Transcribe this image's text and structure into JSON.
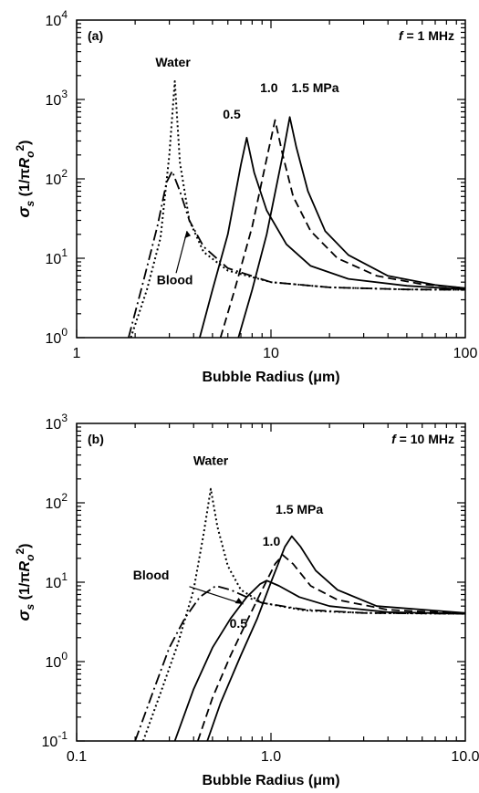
{
  "chart_data": [
    {
      "type": "line",
      "panel_label": "(a)",
      "frequency_label": "= 1 MHz",
      "frequency_symbol": "f",
      "xlabel": "Bubble Radius (μm)",
      "ylabel": "σs (1/πRo2)",
      "xscale": "log",
      "yscale": "log",
      "xlim": [
        1,
        100
      ],
      "ylim": [
        1,
        10000
      ],
      "x_tick_labels": [
        "1",
        "10",
        "100"
      ],
      "y_tick_labels": [
        {
          "base": "10",
          "exp": "0"
        },
        {
          "base": "10",
          "exp": "1"
        },
        {
          "base": "10",
          "exp": "2"
        },
        {
          "base": "10",
          "exp": "3"
        },
        {
          "base": "10",
          "exp": "4"
        }
      ],
      "annotations": [
        "Water",
        "Blood",
        "0.5",
        "1.0",
        "1.5 MPa"
      ],
      "series": [
        {
          "name": "Water",
          "style": "dotted",
          "peak_x": 3.2,
          "peak_y": 1700,
          "points": [
            [
              1.9,
              1
            ],
            [
              2.3,
              4
            ],
            [
              2.7,
              18
            ],
            [
              3.0,
              200
            ],
            [
              3.2,
              1700
            ],
            [
              3.4,
              160
            ],
            [
              3.8,
              30
            ],
            [
              4.5,
              12
            ],
            [
              6,
              7
            ],
            [
              10,
              5
            ],
            [
              20,
              4.3
            ],
            [
              50,
              4.05
            ],
            [
              100,
              4
            ]
          ]
        },
        {
          "name": "Blood",
          "style": "dash-dot",
          "peak_x": 3.1,
          "peak_y": 125,
          "points": [
            [
              1.85,
              1
            ],
            [
              2.2,
              5
            ],
            [
              2.6,
              25
            ],
            [
              2.9,
              90
            ],
            [
              3.1,
              125
            ],
            [
              3.4,
              70
            ],
            [
              3.8,
              30
            ],
            [
              4.5,
              14
            ],
            [
              6,
              7.5
            ],
            [
              10,
              5
            ],
            [
              20,
              4.3
            ],
            [
              50,
              4.05
            ],
            [
              100,
              4
            ]
          ]
        },
        {
          "name": "0.5",
          "style": "solid",
          "peak_x": 7.5,
          "peak_y": 330,
          "points": [
            [
              4.3,
              1
            ],
            [
              5,
              4
            ],
            [
              6,
              20
            ],
            [
              7,
              150
            ],
            [
              7.5,
              330
            ],
            [
              8.2,
              120
            ],
            [
              9.5,
              40
            ],
            [
              12,
              15
            ],
            [
              16,
              8
            ],
            [
              25,
              5.5
            ],
            [
              50,
              4.5
            ],
            [
              100,
              4.05
            ]
          ]
        },
        {
          "name": "1.0",
          "style": "dashed",
          "peak_x": 10.5,
          "peak_y": 550,
          "points": [
            [
              5.5,
              1
            ],
            [
              6.5,
              4
            ],
            [
              8,
              25
            ],
            [
              9.5,
              180
            ],
            [
              10.5,
              550
            ],
            [
              11.5,
              200
            ],
            [
              13,
              60
            ],
            [
              16,
              22
            ],
            [
              22,
              10
            ],
            [
              35,
              6
            ],
            [
              60,
              4.7
            ],
            [
              100,
              4.2
            ]
          ]
        },
        {
          "name": "1.5 MPa",
          "style": "solid",
          "peak_x": 12.5,
          "peak_y": 600,
          "points": [
            [
              6.8,
              1
            ],
            [
              8,
              4
            ],
            [
              9.5,
              20
            ],
            [
              11.5,
              200
            ],
            [
              12.5,
              600
            ],
            [
              13.5,
              250
            ],
            [
              15.5,
              70
            ],
            [
              19,
              22
            ],
            [
              25,
              11
            ],
            [
              40,
              6
            ],
            [
              70,
              4.6
            ],
            [
              100,
              4.2
            ]
          ]
        }
      ]
    },
    {
      "type": "line",
      "panel_label": "(b)",
      "frequency_label": "= 10 MHz",
      "frequency_symbol": "f",
      "xlabel": "Bubble Radius (μm)",
      "ylabel": "σs (1/πRo2)",
      "xscale": "log",
      "yscale": "log",
      "xlim": [
        0.1,
        10.0
      ],
      "ylim": [
        0.1,
        1000
      ],
      "x_tick_labels": [
        "0.1",
        "1.0",
        "10.0"
      ],
      "y_tick_labels": [
        {
          "base": "10",
          "exp": "-1"
        },
        {
          "base": "10",
          "exp": "0"
        },
        {
          "base": "10",
          "exp": "1"
        },
        {
          "base": "10",
          "exp": "2"
        },
        {
          "base": "10",
          "exp": "3"
        }
      ],
      "annotations": [
        "Water",
        "Blood",
        "0.5",
        "1.0",
        "1.5 MPa"
      ],
      "series": [
        {
          "name": "Water",
          "style": "dotted",
          "peak_x": 0.49,
          "peak_y": 150,
          "points": [
            [
              0.22,
              0.1
            ],
            [
              0.27,
              0.4
            ],
            [
              0.33,
              1.6
            ],
            [
              0.4,
              8
            ],
            [
              0.45,
              40
            ],
            [
              0.49,
              150
            ],
            [
              0.53,
              50
            ],
            [
              0.6,
              16
            ],
            [
              0.7,
              8
            ],
            [
              0.9,
              5.5
            ],
            [
              1.5,
              4.4
            ],
            [
              3,
              4.1
            ],
            [
              10,
              4
            ]
          ]
        },
        {
          "name": "Blood",
          "style": "dash-dot",
          "peak_x": 0.52,
          "peak_y": 9,
          "points": [
            [
              0.2,
              0.1
            ],
            [
              0.25,
              0.45
            ],
            [
              0.3,
              1.5
            ],
            [
              0.36,
              3.5
            ],
            [
              0.43,
              6.5
            ],
            [
              0.52,
              9
            ],
            [
              0.62,
              8
            ],
            [
              0.75,
              6.5
            ],
            [
              0.9,
              5.5
            ],
            [
              1.5,
              4.5
            ],
            [
              3,
              4.1
            ],
            [
              10,
              4
            ]
          ]
        },
        {
          "name": "0.5",
          "style": "solid",
          "peak_x": 0.95,
          "peak_y": 10.5,
          "points": [
            [
              0.32,
              0.1
            ],
            [
              0.4,
              0.45
            ],
            [
              0.5,
              1.5
            ],
            [
              0.62,
              3.5
            ],
            [
              0.75,
              6.5
            ],
            [
              0.88,
              9.5
            ],
            [
              0.95,
              10.5
            ],
            [
              1.1,
              9
            ],
            [
              1.4,
              6.5
            ],
            [
              2,
              5
            ],
            [
              4,
              4.2
            ],
            [
              10,
              4
            ]
          ]
        },
        {
          "name": "1.0",
          "style": "dashed",
          "peak_x": 1.15,
          "peak_y": 22,
          "points": [
            [
              0.42,
              0.1
            ],
            [
              0.5,
              0.35
            ],
            [
              0.62,
              1.2
            ],
            [
              0.75,
              3.2
            ],
            [
              0.9,
              8
            ],
            [
              1.05,
              17
            ],
            [
              1.15,
              22
            ],
            [
              1.3,
              17
            ],
            [
              1.6,
              9
            ],
            [
              2.2,
              6
            ],
            [
              4,
              4.5
            ],
            [
              10,
              4
            ]
          ]
        },
        {
          "name": "1.5 MPa",
          "style": "solid",
          "peak_x": 1.28,
          "peak_y": 38,
          "points": [
            [
              0.47,
              0.1
            ],
            [
              0.55,
              0.3
            ],
            [
              0.7,
              1.2
            ],
            [
              0.85,
              3.5
            ],
            [
              1.0,
              10
            ],
            [
              1.18,
              28
            ],
            [
              1.28,
              38
            ],
            [
              1.42,
              28
            ],
            [
              1.7,
              14
            ],
            [
              2.2,
              8
            ],
            [
              3.5,
              5
            ],
            [
              10,
              4.1
            ]
          ]
        }
      ]
    }
  ]
}
